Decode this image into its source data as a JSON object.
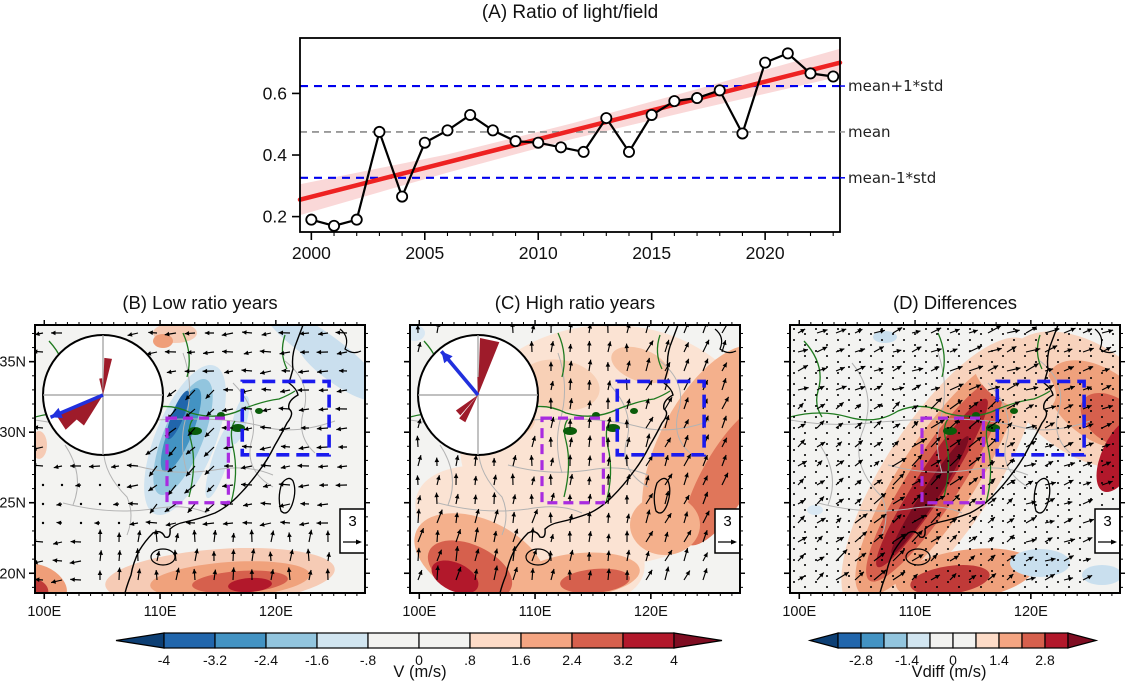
{
  "chart_data": [
    {
      "id": "A",
      "type": "line",
      "title": "(A) Ratio of light/field",
      "xlabel": "",
      "ylabel": "",
      "x": [
        2000,
        2001,
        2002,
        2003,
        2004,
        2005,
        2006,
        2007,
        2008,
        2009,
        2010,
        2011,
        2012,
        2013,
        2014,
        2015,
        2016,
        2017,
        2018,
        2019,
        2020,
        2021,
        2022,
        2023
      ],
      "values": [
        0.19,
        0.17,
        0.19,
        0.475,
        0.265,
        0.44,
        0.48,
        0.53,
        0.48,
        0.445,
        0.44,
        0.425,
        0.41,
        0.52,
        0.41,
        0.53,
        0.575,
        0.585,
        0.61,
        0.47,
        0.7,
        0.73,
        0.665,
        0.655
      ],
      "marker": "open-circle",
      "line_color": "#000000",
      "mean": 0.475,
      "std": 0.149,
      "hlines": [
        {
          "label": "mean+1*std",
          "value": 0.624,
          "color": "#0000ee",
          "dash": "8 6",
          "width": 2.2
        },
        {
          "label": "mean",
          "value": 0.475,
          "color": "#999999",
          "dash": "7 5",
          "width": 1.8
        },
        {
          "label": "mean-1*std",
          "value": 0.326,
          "color": "#0000ee",
          "dash": "8 6",
          "width": 2.2
        }
      ],
      "trend": {
        "start": 0.255,
        "end": 0.7,
        "color": "#ee2222",
        "width": 4.5,
        "band_color": "#f09090",
        "band_opacity": 0.35,
        "band": {
          "top": [
            [
              1999.5,
              0.305
            ],
            [
              2006,
              0.402
            ],
            [
              2011.5,
              0.503
            ],
            [
              2017,
              0.614
            ],
            [
              2023.3,
              0.745
            ]
          ],
          "bottom": [
            [
              2023.3,
              0.655
            ],
            [
              2017,
              0.548
            ],
            [
              2011.5,
              0.452
            ],
            [
              2006,
              0.343
            ],
            [
              1999.5,
              0.205
            ]
          ]
        }
      },
      "xlim": [
        1999.5,
        2023.3
      ],
      "ylim": [
        0.15,
        0.78
      ],
      "xticks": [
        2000,
        2005,
        2010,
        2015,
        2020
      ],
      "yticks": [
        0.2,
        0.4,
        0.6
      ],
      "grid": false
    },
    {
      "id": "B",
      "type": "map",
      "title": "(B) Low ratio years",
      "xtick_labels": [
        "100E",
        "110E",
        "120E"
      ],
      "xtick_lons": [
        100,
        110,
        120
      ],
      "ytick_labels": [
        "35N",
        "30N",
        "25N",
        "20N"
      ],
      "ytick_lats": [
        35,
        30,
        25,
        20
      ],
      "lon_range": [
        99.2,
        127.7
      ],
      "lat_range": [
        18.6,
        37.6
      ],
      "show_lat_labels": true,
      "shading_var": "V (m/s)",
      "shading_summary": "negative (blue) meridional wind band ~108-116E, 24-32N; positive (red) band along south coast 18-22N",
      "vector_summary": "anomalous easterly flow (arrows point west), southerlies south of 22N",
      "stipple": false,
      "inset_rose": {
        "petal_color": "#9e1b2a",
        "arrow_color": "#2130dd",
        "petals": [
          {
            "az": 237,
            "len": 0.85,
            "hw": 10
          },
          {
            "az": 220,
            "len": 0.6,
            "hw": 8
          },
          {
            "az": 8,
            "len": 0.62,
            "hw": 6
          },
          {
            "az": 352,
            "len": 0.28,
            "hw": 5
          }
        ],
        "arrow_az": 247,
        "arrow_len": 0.95
      },
      "boxes": [
        {
          "name": "blue-analysis-box",
          "color": "#1a1aee",
          "lon": [
            117.1,
            124.6
          ],
          "lat": [
            28.4,
            33.6
          ],
          "dash": "13 7",
          "width": 3.6
        },
        {
          "name": "purple-analysis-box",
          "color": "#a92be0",
          "lon": [
            110.6,
            115.9
          ],
          "lat": [
            25.0,
            31.0
          ],
          "dash": "10 6",
          "width": 3.2
        }
      ],
      "scale_arrow": {
        "value": "3"
      }
    },
    {
      "id": "C",
      "type": "map",
      "title": "(C) High ratio years",
      "xtick_labels": [
        "100E",
        "110E",
        "120E"
      ],
      "xtick_lons": [
        100,
        110,
        120
      ],
      "ytick_labels": [
        "35N",
        "30N",
        "25N",
        "20N"
      ],
      "ytick_lats": [
        35,
        30,
        25,
        20
      ],
      "lon_range": [
        99.2,
        127.7
      ],
      "lat_range": [
        18.6,
        37.6
      ],
      "show_lat_labels": false,
      "shading_var": "V (m/s)",
      "shading_summary": "widespread positive (red) meridional wind; strongest over southwest and along southeast coast",
      "vector_summary": "anomalous southerly flow (arrows point north/northeast)",
      "stipple": false,
      "inset_rose": {
        "petal_color": "#9e1b2a",
        "arrow_color": "#2130dd",
        "petals": [
          {
            "az": 12,
            "len": 0.95,
            "hw": 10
          },
          {
            "az": 3,
            "len": 0.3,
            "hw": 5
          },
          {
            "az": 212,
            "len": 0.5,
            "hw": 7
          },
          {
            "az": 228,
            "len": 0.45,
            "hw": 7
          }
        ],
        "arrow_az": 320,
        "arrow_len": 0.95
      },
      "boxes": [
        {
          "name": "blue-analysis-box",
          "color": "#1a1aee",
          "lon": [
            117.1,
            124.6
          ],
          "lat": [
            28.4,
            33.6
          ],
          "dash": "13 7",
          "width": 3.6
        },
        {
          "name": "purple-analysis-box",
          "color": "#a92be0",
          "lon": [
            110.6,
            115.9
          ],
          "lat": [
            25.0,
            31.0
          ],
          "dash": "10 6",
          "width": 3.2
        }
      ],
      "scale_arrow": {
        "value": "3"
      }
    },
    {
      "id": "D",
      "type": "map",
      "title": "(D) Differences",
      "xtick_labels": [
        "100E",
        "110E",
        "120E"
      ],
      "xtick_lons": [
        100,
        110,
        120
      ],
      "ytick_labels": [
        "35N",
        "30N",
        "25N",
        "20N"
      ],
      "ytick_lats": [
        35,
        30,
        25,
        20
      ],
      "lon_range": [
        99.2,
        127.7
      ],
      "lat_range": [
        18.6,
        37.6
      ],
      "show_lat_labels": false,
      "shading_var": "Vdiff (m/s)",
      "shading_summary": "strong positive (dark red) difference band from southwest to northeast through 110-116E; stippling denotes significance",
      "vector_summary": "southwesterly difference vectors (arrows point northeast)",
      "stipple": true,
      "inset_rose": null,
      "boxes": [
        {
          "name": "blue-analysis-box",
          "color": "#1a1aee",
          "lon": [
            117.1,
            124.6
          ],
          "lat": [
            28.4,
            33.6
          ],
          "dash": "13 7",
          "width": 3.6
        },
        {
          "name": "purple-analysis-box",
          "color": "#a92be0",
          "lon": [
            110.6,
            115.9
          ],
          "lat": [
            25.0,
            31.0
          ],
          "dash": "10 6",
          "width": 3.2
        }
      ],
      "scale_arrow": {
        "value": "3"
      }
    }
  ],
  "colorbars": [
    {
      "label": "V (m/s)",
      "tick_labels": [
        "-4",
        "-3.2",
        "-2.4",
        "-1.6",
        "-.8",
        "0",
        ".8",
        "1.6",
        "2.4",
        "3.2",
        "4"
      ],
      "segment_colors": [
        "#2166ac",
        "#4393c3",
        "#92c5de",
        "#d1e5f0",
        "#f2f2f0",
        "#f2f2f0",
        "#fddbc7",
        "#f4a582",
        "#d6604d",
        "#b2182b"
      ],
      "cap_colors": [
        "#0d3f74",
        "#7f0d22"
      ]
    },
    {
      "label": "Vdiff (m/s)",
      "tick_labels": [
        "",
        "-2.8",
        "",
        "-1.4",
        "",
        "0",
        "",
        "1.4",
        "",
        "2.8",
        ""
      ],
      "segment_colors": [
        "#2166ac",
        "#4393c3",
        "#92c5de",
        "#d1e5f0",
        "#f2f2f0",
        "#f2f2f0",
        "#fddbc7",
        "#f4a582",
        "#d6604d",
        "#b2182b"
      ],
      "cap_colors": [
        "#0d3f74",
        "#7f0d22"
      ]
    }
  ]
}
